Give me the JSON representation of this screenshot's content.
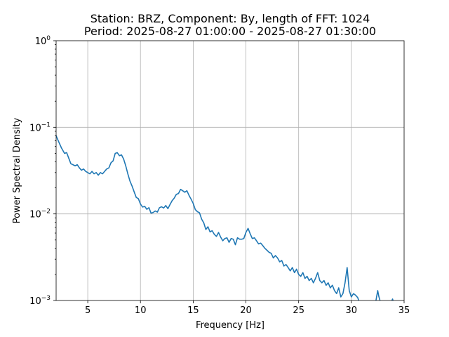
{
  "chart_data": {
    "type": "line",
    "title": [
      "Station: BRZ, Component: By, length of FFT: 1024",
      "Period: 2025-08-27 01:00:00 - 2025-08-27 01:30:00"
    ],
    "xlabel": "Frequency [Hz]",
    "ylabel": "Power Spectral Density",
    "xlim": [
      2,
      35
    ],
    "ylim": [
      0.001,
      1
    ],
    "yscale": "log",
    "grid": true,
    "x_ticks": [
      {
        "value": 5,
        "label": "5"
      },
      {
        "value": 10,
        "label": "10"
      },
      {
        "value": 15,
        "label": "15"
      },
      {
        "value": 20,
        "label": "20"
      },
      {
        "value": 25,
        "label": "25"
      },
      {
        "value": 30,
        "label": "30"
      },
      {
        "value": 35,
        "label": "35"
      }
    ],
    "y_ticks": [
      {
        "value": 0.001,
        "base": "10",
        "exp": "−3"
      },
      {
        "value": 0.01,
        "base": "10",
        "exp": "−2"
      },
      {
        "value": 0.1,
        "base": "10",
        "exp": "−1"
      },
      {
        "value": 1,
        "base": "10",
        "exp": "0"
      }
    ],
    "series": [
      {
        "color": "#1f77b4",
        "x": [
          2.0,
          2.2,
          2.5,
          2.8,
          3.0,
          3.2,
          3.4,
          3.6,
          3.8,
          4.0,
          4.2,
          4.4,
          4.6,
          4.8,
          5.0,
          5.2,
          5.4,
          5.6,
          5.8,
          6.0,
          6.2,
          6.4,
          6.6,
          6.8,
          7.0,
          7.2,
          7.4,
          7.6,
          7.8,
          8.0,
          8.2,
          8.4,
          8.6,
          8.8,
          9.0,
          9.2,
          9.4,
          9.6,
          9.8,
          10.0,
          10.2,
          10.4,
          10.6,
          10.8,
          11.0,
          11.2,
          11.4,
          11.6,
          11.8,
          12.0,
          12.2,
          12.4,
          12.6,
          12.8,
          13.0,
          13.2,
          13.4,
          13.6,
          13.8,
          14.0,
          14.2,
          14.4,
          14.6,
          14.8,
          15.0,
          15.2,
          15.4,
          15.6,
          15.8,
          16.0,
          16.2,
          16.4,
          16.6,
          16.8,
          17.0,
          17.2,
          17.4,
          17.6,
          17.8,
          18.0,
          18.2,
          18.4,
          18.6,
          18.8,
          19.0,
          19.2,
          19.4,
          19.6,
          19.8,
          20.0,
          20.2,
          20.4,
          20.6,
          20.8,
          21.0,
          21.2,
          21.4,
          21.6,
          21.8,
          22.0,
          22.2,
          22.4,
          22.6,
          22.8,
          23.0,
          23.2,
          23.4,
          23.6,
          23.8,
          24.0,
          24.2,
          24.4,
          24.6,
          24.8,
          25.0,
          25.2,
          25.4,
          25.6,
          25.8,
          26.0,
          26.2,
          26.4,
          26.6,
          26.8,
          27.0,
          27.2,
          27.4,
          27.6,
          27.8,
          28.0,
          28.2,
          28.4,
          28.6,
          28.8,
          29.0,
          29.2,
          29.4,
          29.6,
          29.8,
          30.0,
          30.2,
          30.4,
          30.6,
          30.8,
          31.0,
          31.1
        ],
        "y": [
          0.08,
          0.07,
          0.058,
          0.05,
          0.051,
          0.044,
          0.038,
          0.037,
          0.036,
          0.037,
          0.034,
          0.032,
          0.033,
          0.031,
          0.03,
          0.029,
          0.031,
          0.029,
          0.03,
          0.028,
          0.03,
          0.029,
          0.031,
          0.033,
          0.034,
          0.039,
          0.041,
          0.05,
          0.051,
          0.047,
          0.048,
          0.043,
          0.036,
          0.029,
          0.024,
          0.021,
          0.018,
          0.0155,
          0.015,
          0.013,
          0.012,
          0.0122,
          0.0113,
          0.0118,
          0.0102,
          0.0104,
          0.0108,
          0.0105,
          0.0118,
          0.0121,
          0.0117,
          0.0125,
          0.0115,
          0.0128,
          0.0142,
          0.0152,
          0.0168,
          0.0172,
          0.0192,
          0.0185,
          0.0178,
          0.0185,
          0.0164,
          0.0148,
          0.0132,
          0.0112,
          0.0106,
          0.0103,
          0.0087,
          0.0079,
          0.0066,
          0.0071,
          0.0062,
          0.0064,
          0.0058,
          0.0055,
          0.0061,
          0.0054,
          0.0049,
          0.0052,
          0.0053,
          0.0047,
          0.0052,
          0.0051,
          0.0044,
          0.0053,
          0.0051,
          0.0051,
          0.0052,
          0.0061,
          0.0068,
          0.0059,
          0.0052,
          0.0053,
          0.0049,
          0.0045,
          0.0046,
          0.0043,
          0.004,
          0.0038,
          0.0036,
          0.0035,
          0.0031,
          0.0033,
          0.0031,
          0.0028,
          0.0029,
          0.0025,
          0.0026,
          0.0024,
          0.0022,
          0.0024,
          0.0021,
          0.0023,
          0.002,
          0.0019,
          0.0021,
          0.0018,
          0.0019,
          0.0017,
          0.0018,
          0.0016,
          0.0018,
          0.0021,
          0.0017,
          0.0016,
          0.0017,
          0.0015,
          0.0016,
          0.0014,
          0.0015,
          0.0013,
          0.0012,
          0.0014,
          0.0011,
          0.0012,
          0.0016,
          0.0024,
          0.0013,
          0.0011,
          0.0012,
          0.00115,
          0.00108,
          0.00092,
          0.00098,
          0.00095
        ]
      },
      {
        "color": "#1f77b4",
        "x": [
          32.3,
          32.5,
          32.6,
          32.8
        ],
        "y": [
          0.00095,
          0.0013,
          0.00112,
          0.00092
        ]
      },
      {
        "color": "#1f77b4",
        "x": [
          33.8,
          33.9,
          34.0
        ],
        "y": [
          0.00097,
          0.00104,
          0.00096
        ]
      }
    ]
  }
}
